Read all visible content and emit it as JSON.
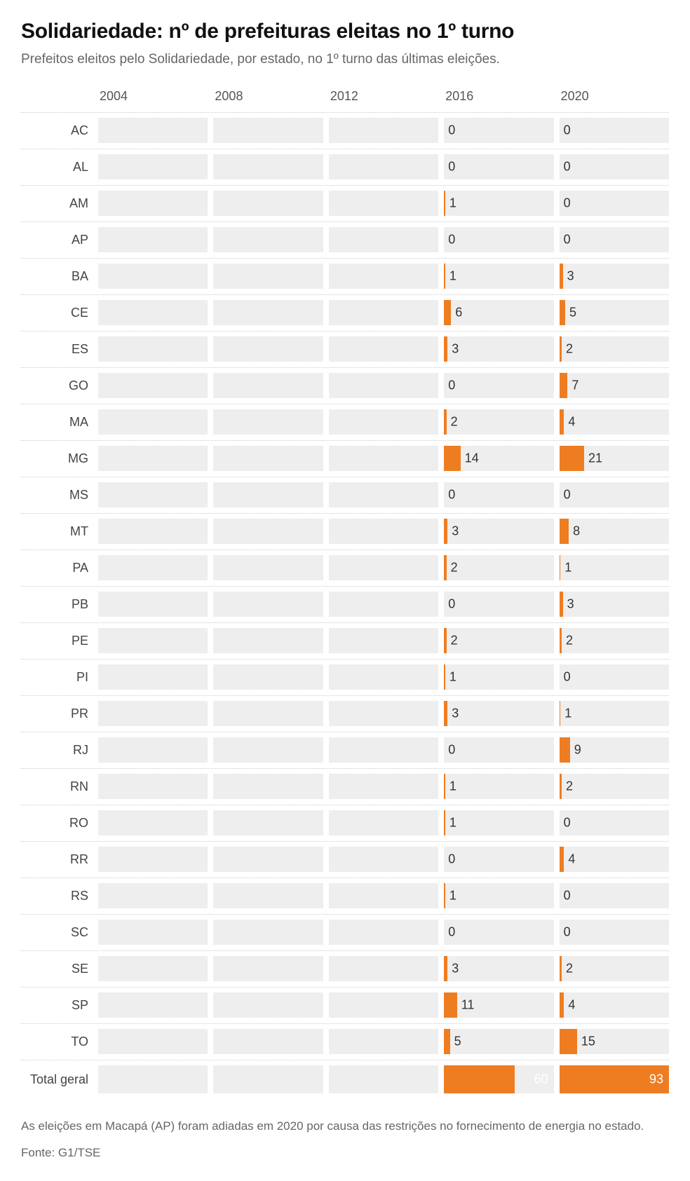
{
  "title": "Solidariedade: nº de prefeituras eleitas no 1º turno",
  "subtitle": "Prefeitos eleitos pelo Solidariedade, por estado, no 1º turno das últimas eleições.",
  "note": "As eleições em Macapá (AP) foram adiadas em 2020 por causa das restrições no fornecimento de energia no estado.",
  "source": "Fonte: G1/TSE",
  "chart": {
    "years": [
      "2004",
      "2008",
      "2012",
      "2016",
      "2020"
    ],
    "bar_max_state": 93,
    "bar_max_total": 93,
    "colors": {
      "track": "#eeeeee",
      "bar": "#ee7d22",
      "text": "#333333",
      "total_text": "#ffffff",
      "row_border": "#cccccc"
    },
    "rows": [
      {
        "label": "AC",
        "values": [
          null,
          null,
          null,
          0,
          0
        ]
      },
      {
        "label": "AL",
        "values": [
          null,
          null,
          null,
          0,
          0
        ]
      },
      {
        "label": "AM",
        "values": [
          null,
          null,
          null,
          1,
          0
        ]
      },
      {
        "label": "AP",
        "values": [
          null,
          null,
          null,
          0,
          0
        ]
      },
      {
        "label": "BA",
        "values": [
          null,
          null,
          null,
          1,
          3
        ]
      },
      {
        "label": "CE",
        "values": [
          null,
          null,
          null,
          6,
          5
        ]
      },
      {
        "label": "ES",
        "values": [
          null,
          null,
          null,
          3,
          2
        ]
      },
      {
        "label": "GO",
        "values": [
          null,
          null,
          null,
          0,
          7
        ]
      },
      {
        "label": "MA",
        "values": [
          null,
          null,
          null,
          2,
          4
        ]
      },
      {
        "label": "MG",
        "values": [
          null,
          null,
          null,
          14,
          21
        ]
      },
      {
        "label": "MS",
        "values": [
          null,
          null,
          null,
          0,
          0
        ]
      },
      {
        "label": "MT",
        "values": [
          null,
          null,
          null,
          3,
          8
        ]
      },
      {
        "label": "PA",
        "values": [
          null,
          null,
          null,
          2,
          1
        ]
      },
      {
        "label": "PB",
        "values": [
          null,
          null,
          null,
          0,
          3
        ]
      },
      {
        "label": "PE",
        "values": [
          null,
          null,
          null,
          2,
          2
        ]
      },
      {
        "label": "PI",
        "values": [
          null,
          null,
          null,
          1,
          0
        ]
      },
      {
        "label": "PR",
        "values": [
          null,
          null,
          null,
          3,
          1
        ]
      },
      {
        "label": "RJ",
        "values": [
          null,
          null,
          null,
          0,
          9
        ]
      },
      {
        "label": "RN",
        "values": [
          null,
          null,
          null,
          1,
          2
        ]
      },
      {
        "label": "RO",
        "values": [
          null,
          null,
          null,
          1,
          0
        ]
      },
      {
        "label": "RR",
        "values": [
          null,
          null,
          null,
          0,
          4
        ]
      },
      {
        "label": "RS",
        "values": [
          null,
          null,
          null,
          1,
          0
        ]
      },
      {
        "label": "SC",
        "values": [
          null,
          null,
          null,
          0,
          0
        ]
      },
      {
        "label": "SE",
        "values": [
          null,
          null,
          null,
          3,
          2
        ]
      },
      {
        "label": "SP",
        "values": [
          null,
          null,
          null,
          11,
          4
        ]
      },
      {
        "label": "TO",
        "values": [
          null,
          null,
          null,
          5,
          15
        ]
      }
    ],
    "total_row": {
      "label": "Total geral",
      "values": [
        null,
        null,
        null,
        60,
        93
      ]
    }
  }
}
